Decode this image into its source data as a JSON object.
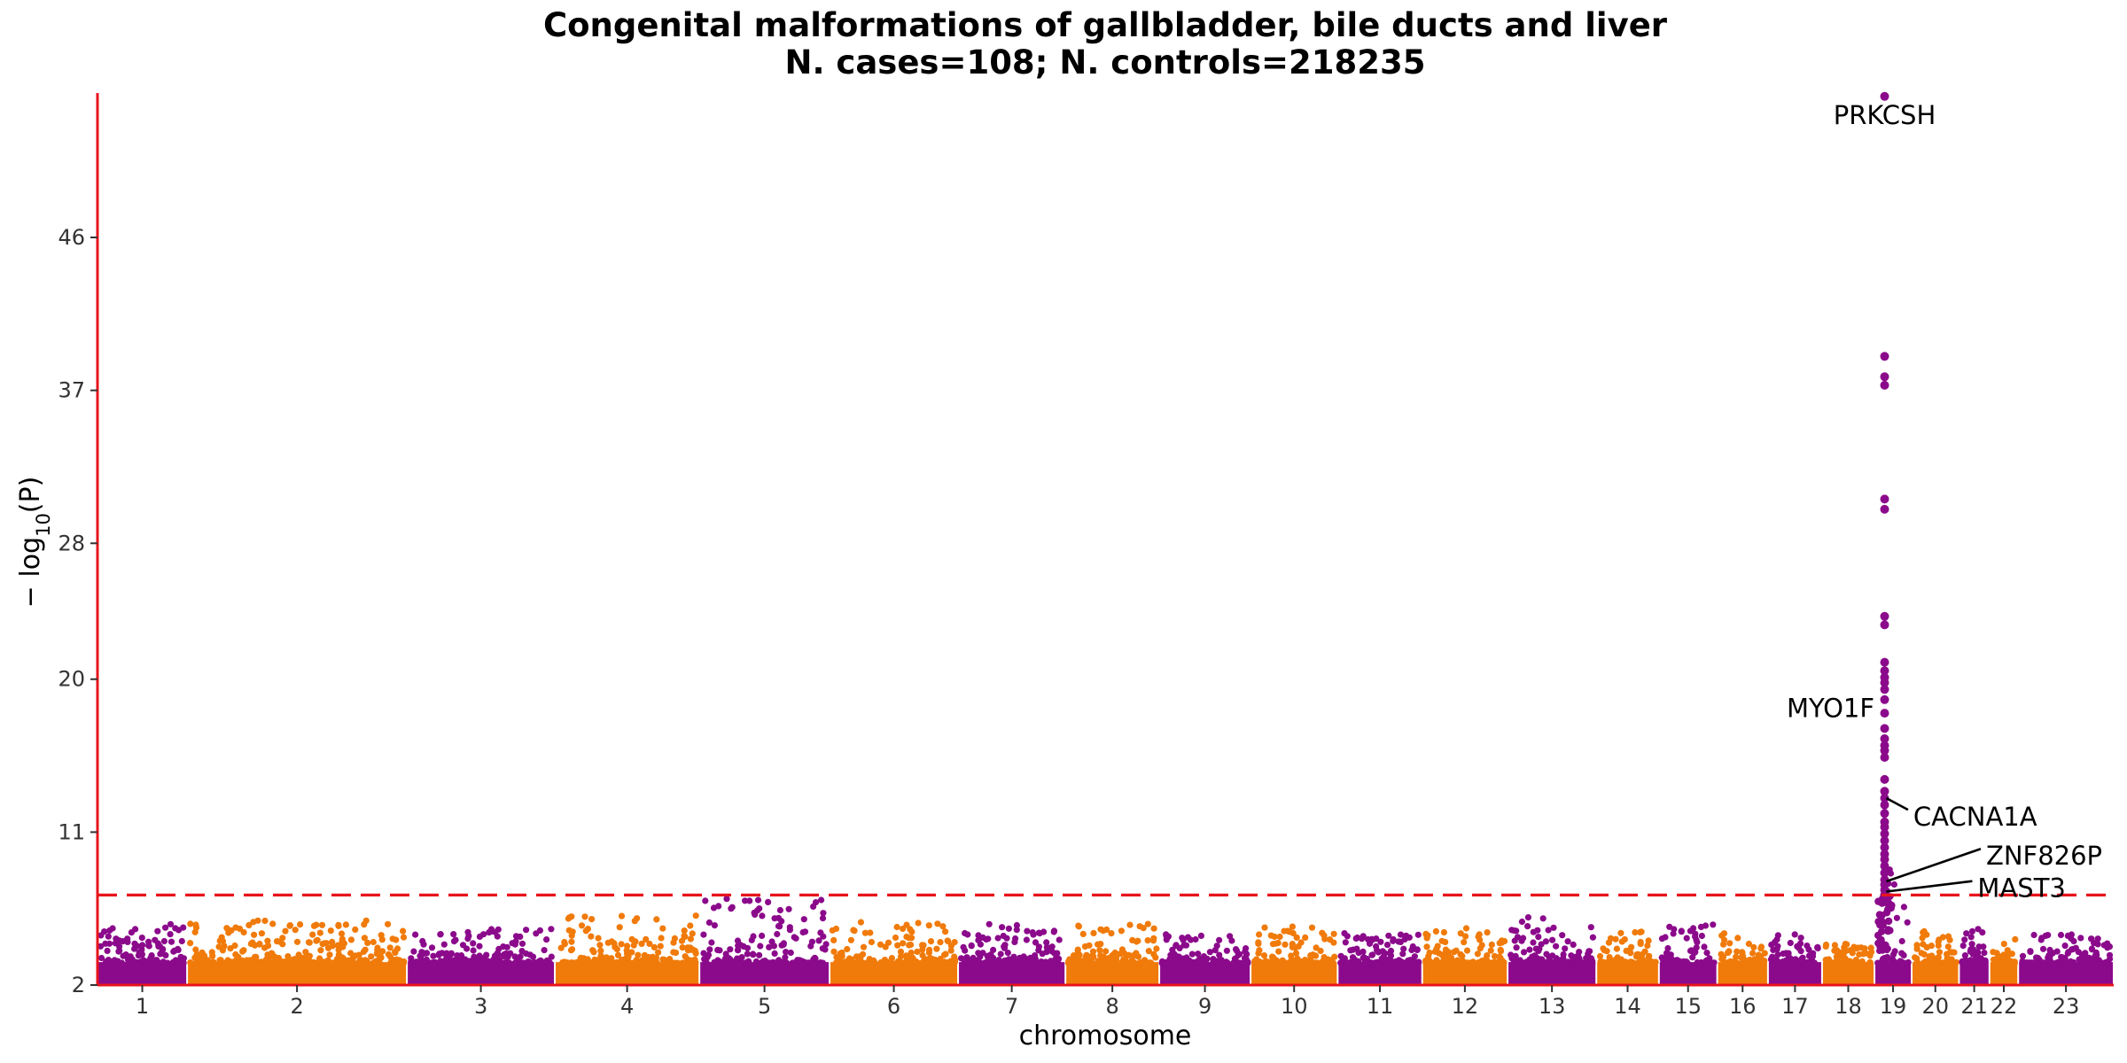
{
  "chart_data": {
    "type": "scatter",
    "subtype": "manhattan",
    "title": "Congenital malformations of gallbladder, bile ducts and liver",
    "subtitle": "N. cases=108; N. controls=218235",
    "xlabel": "chromosome",
    "ylabel_prefix": "− log",
    "ylabel_sub": "10",
    "ylabel_suffix": "(P)",
    "ylim": [
      2,
      54.5
    ],
    "yticks": [
      2,
      11,
      20,
      28,
      37,
      46
    ],
    "significance_threshold": 7.3,
    "threshold_color": "#e8141b",
    "axis_color": "#e8141b",
    "colors": {
      "odd": "#8b0a8b",
      "even": "#f07a0a"
    },
    "chromosomes": [
      {
        "name": "1",
        "start": 0,
        "end": 106,
        "max": 5.6
      },
      {
        "name": "2",
        "start": 106,
        "end": 366,
        "max": 5.8
      },
      {
        "name": "3",
        "start": 366,
        "end": 541,
        "max": 5.3
      },
      {
        "name": "4",
        "start": 541,
        "end": 712,
        "max": 6.1
      },
      {
        "name": "5",
        "start": 712,
        "end": 866,
        "max": 7.1
      },
      {
        "name": "6",
        "start": 866,
        "end": 1018,
        "max": 5.7
      },
      {
        "name": "7",
        "start": 1018,
        "end": 1145,
        "max": 5.6
      },
      {
        "name": "8",
        "start": 1145,
        "end": 1256,
        "max": 5.6
      },
      {
        "name": "9",
        "start": 1256,
        "end": 1364,
        "max": 5.0
      },
      {
        "name": "10",
        "start": 1364,
        "end": 1467,
        "max": 5.5
      },
      {
        "name": "11",
        "start": 1467,
        "end": 1567,
        "max": 5.1
      },
      {
        "name": "12",
        "start": 1567,
        "end": 1668,
        "max": 5.4
      },
      {
        "name": "13",
        "start": 1668,
        "end": 1773,
        "max": 6.1
      },
      {
        "name": "14",
        "start": 1773,
        "end": 1847,
        "max": 5.2
      },
      {
        "name": "15",
        "start": 1847,
        "end": 1916,
        "max": 5.9
      },
      {
        "name": "16",
        "start": 1916,
        "end": 1976,
        "max": 5.2
      },
      {
        "name": "17",
        "start": 1976,
        "end": 2040,
        "max": 5.0
      },
      {
        "name": "18",
        "start": 2040,
        "end": 2102,
        "max": 4.5
      },
      {
        "name": "19",
        "start": 2102,
        "end": 2146,
        "max": 9.0
      },
      {
        "name": "20",
        "start": 2146,
        "end": 2202,
        "max": 5.3
      },
      {
        "name": "21",
        "start": 2202,
        "end": 2238,
        "max": 5.6
      },
      {
        "name": "22",
        "start": 2238,
        "end": 2272,
        "max": 4.7
      },
      {
        "name": "23",
        "start": 2272,
        "end": 2385,
        "max": 5.0
      }
    ],
    "peak": {
      "chromosome": "19",
      "x": 2114,
      "points": [
        54.3,
        39.0,
        37.8,
        37.3,
        30.6,
        30.0,
        23.7,
        23.2,
        21.0,
        20.5,
        20.1,
        19.8,
        19.4,
        18.8,
        18.0,
        17.1,
        16.5,
        16.1,
        15.8,
        15.4,
        14.1,
        13.4,
        13.0,
        12.6,
        12.1,
        11.6,
        11.3,
        10.9,
        10.5,
        10.1,
        9.7,
        9.4,
        9.0,
        8.6,
        8.2,
        7.9,
        7.6,
        7.3
      ]
    },
    "annotations": [
      {
        "label": "PRKCSH",
        "x": 2114,
        "y": 54.3,
        "anchor": "middle",
        "tx": 2114,
        "ty": 53.2
      },
      {
        "label": "MYO1F",
        "x": 2114,
        "y": 18.6,
        "anchor": "end",
        "tx": 2102,
        "ty": 18.3
      },
      {
        "label": "CACNA1A",
        "x": 2116,
        "y": 13.0,
        "anchor": "start",
        "tx": 2148,
        "ty": 11.9
      },
      {
        "label": "ZNF826P",
        "x": 2116,
        "y": 8.1,
        "anchor": "start",
        "tx": 2234,
        "ty": 9.6
      },
      {
        "label": "MAST3",
        "x": 2116,
        "y": 7.5,
        "anchor": "start",
        "tx": 2224,
        "ty": 7.7
      }
    ]
  }
}
